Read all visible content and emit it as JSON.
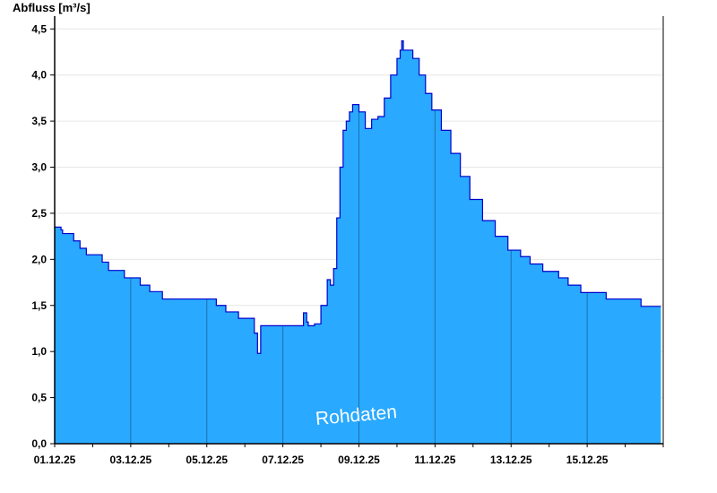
{
  "chart_data": {
    "type": "area",
    "ylabel": "Abfluss [m³/s]",
    "watermark": "Rohdaten",
    "ylim": [
      0,
      4.6
    ],
    "y_ticks": [
      0,
      0.5,
      1.0,
      1.5,
      2.0,
      2.5,
      3.0,
      3.5,
      4.0,
      4.5
    ],
    "y_tick_labels": [
      "0,0",
      "0,5",
      "1,0",
      "1,5",
      "2,0",
      "2,5",
      "3,0",
      "3,5",
      "4,0",
      "4,5"
    ],
    "xlim": [
      "2025-12-01",
      "2025-12-17"
    ],
    "x_tick_labels": [
      {
        "date": "2025-12-01",
        "label": "01.12.25"
      },
      {
        "date": "2025-12-03",
        "label": "03.12.25"
      },
      {
        "date": "2025-12-05",
        "label": "05.12.25"
      },
      {
        "date": "2025-12-07",
        "label": "07.12.25"
      },
      {
        "date": "2025-12-09",
        "label": "09.12.25"
      },
      {
        "date": "2025-12-11",
        "label": "11.12.25"
      },
      {
        "date": "2025-12-13",
        "label": "13.12.25"
      },
      {
        "date": "2025-12-15",
        "label": "15.12.25"
      }
    ],
    "grid": "horizontal",
    "colors": {
      "fill": "#29a9ff",
      "line": "#0000cc",
      "day_lines": "#1f6fb0"
    },
    "series": [
      {
        "values": [
          [
            "2025-12-01T00:00",
            2.35
          ],
          [
            "2025-12-01T04:00",
            2.32
          ],
          [
            "2025-12-01T05:00",
            2.28
          ],
          [
            "2025-12-01T12:00",
            2.2
          ],
          [
            "2025-12-01T16:00",
            2.12
          ],
          [
            "2025-12-01T20:00",
            2.05
          ],
          [
            "2025-12-02T06:00",
            1.97
          ],
          [
            "2025-12-02T10:00",
            1.88
          ],
          [
            "2025-12-02T20:00",
            1.8
          ],
          [
            "2025-12-03T06:00",
            1.72
          ],
          [
            "2025-12-03T12:00",
            1.65
          ],
          [
            "2025-12-03T20:00",
            1.57
          ],
          [
            "2025-12-05T06:00",
            1.5
          ],
          [
            "2025-12-05T12:00",
            1.43
          ],
          [
            "2025-12-05T20:00",
            1.36
          ],
          [
            "2025-12-06T06:00",
            1.2
          ],
          [
            "2025-12-06T08:00",
            0.98
          ],
          [
            "2025-12-06T10:00",
            1.28
          ],
          [
            "2025-12-07T00:00",
            1.28
          ],
          [
            "2025-12-07T06:00",
            1.28
          ],
          [
            "2025-12-07T12:00",
            1.28
          ],
          [
            "2025-12-07T13:00",
            1.42
          ],
          [
            "2025-12-07T15:00",
            1.32
          ],
          [
            "2025-12-07T16:00",
            1.28
          ],
          [
            "2025-12-07T20:00",
            1.3
          ],
          [
            "2025-12-08T00:00",
            1.5
          ],
          [
            "2025-12-08T04:00",
            1.78
          ],
          [
            "2025-12-08T06:00",
            1.72
          ],
          [
            "2025-12-08T08:00",
            1.9
          ],
          [
            "2025-12-08T10:00",
            2.45
          ],
          [
            "2025-12-08T12:00",
            3.0
          ],
          [
            "2025-12-08T14:00",
            3.4
          ],
          [
            "2025-12-08T16:00",
            3.5
          ],
          [
            "2025-12-08T18:00",
            3.6
          ],
          [
            "2025-12-08T20:00",
            3.68
          ],
          [
            "2025-12-09T00:00",
            3.6
          ],
          [
            "2025-12-09T04:00",
            3.42
          ],
          [
            "2025-12-09T08:00",
            3.52
          ],
          [
            "2025-12-09T12:00",
            3.55
          ],
          [
            "2025-12-09T16:00",
            3.75
          ],
          [
            "2025-12-09T20:00",
            4.0
          ],
          [
            "2025-12-10T00:00",
            4.18
          ],
          [
            "2025-12-10T02:00",
            4.27
          ],
          [
            "2025-12-10T03:00",
            4.37
          ],
          [
            "2025-12-10T04:00",
            4.27
          ],
          [
            "2025-12-10T10:00",
            4.18
          ],
          [
            "2025-12-10T14:00",
            4.0
          ],
          [
            "2025-12-10T18:00",
            3.8
          ],
          [
            "2025-12-10T22:00",
            3.62
          ],
          [
            "2025-12-11T04:00",
            3.4
          ],
          [
            "2025-12-11T10:00",
            3.15
          ],
          [
            "2025-12-11T16:00",
            2.9
          ],
          [
            "2025-12-11T22:00",
            2.65
          ],
          [
            "2025-12-12T06:00",
            2.42
          ],
          [
            "2025-12-12T14:00",
            2.25
          ],
          [
            "2025-12-12T22:00",
            2.1
          ],
          [
            "2025-12-13T06:00",
            2.03
          ],
          [
            "2025-12-13T12:00",
            1.95
          ],
          [
            "2025-12-13T20:00",
            1.87
          ],
          [
            "2025-12-14T06:00",
            1.8
          ],
          [
            "2025-12-14T12:00",
            1.72
          ],
          [
            "2025-12-14T20:00",
            1.64
          ],
          [
            "2025-12-15T06:00",
            1.64
          ],
          [
            "2025-12-15T12:00",
            1.57
          ],
          [
            "2025-12-16T06:00",
            1.57
          ],
          [
            "2025-12-16T10:00",
            1.49
          ],
          [
            "2025-12-16T18:00",
            1.49
          ]
        ]
      }
    ]
  }
}
